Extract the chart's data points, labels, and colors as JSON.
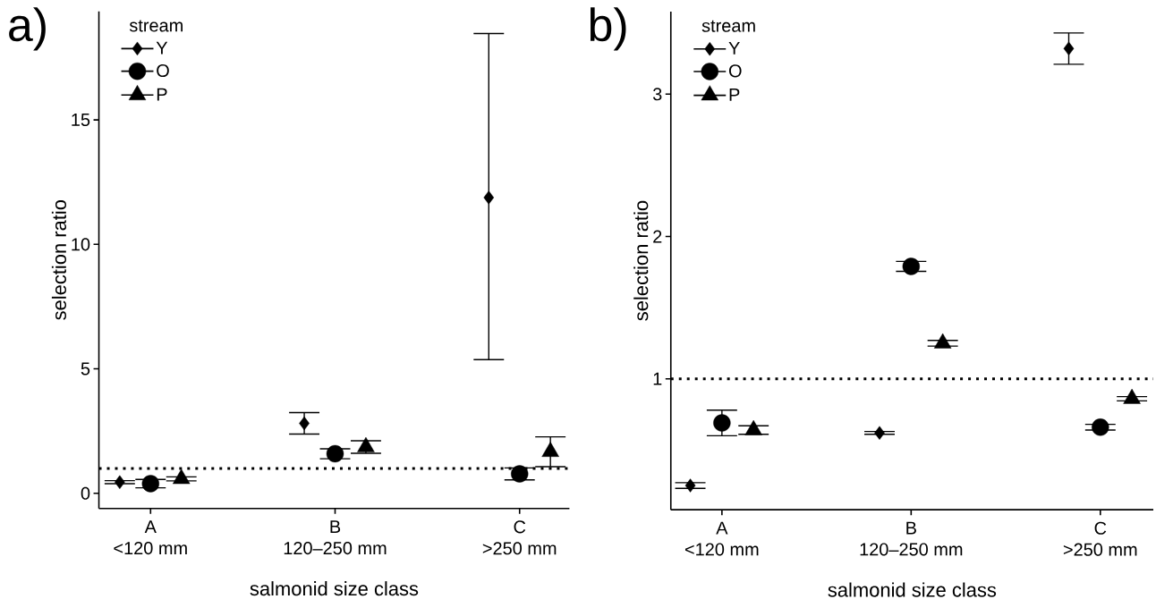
{
  "chart_data": [
    {
      "type": "scatter",
      "title": "a)",
      "xlabel": "salmonid size class",
      "ylabel": "selection ratio",
      "legend_title": "stream",
      "legend": "top left",
      "categories": [
        "A\n<120 mm",
        "B\n120–250 mm",
        "C\n>250 mm"
      ],
      "ylim": [
        -0.61,
        19.36
      ],
      "yticks": [
        0,
        5,
        10,
        15
      ],
      "ref_lines": [
        {
          "axis": "y",
          "value": 1,
          "line_style": "dotted",
          "color": "#000000"
        }
      ],
      "series": [
        {
          "name": "Y",
          "color": "#000000",
          "marker": "diamond",
          "values": [
            0.45,
            2.81,
            11.88
          ],
          "errors": [
            0.06,
            0.43,
            [
              5.37,
              18.47
            ]
          ]
        },
        {
          "name": "O",
          "color": "#000000",
          "marker": "circle",
          "values": [
            0.39,
            1.59,
            0.78
          ],
          "errors": [
            0.17,
            0.2,
            0.24
          ]
        },
        {
          "name": "P",
          "color": "#000000",
          "marker": "triangle",
          "values": [
            0.58,
            1.86,
            1.67
          ],
          "errors": [
            0.08,
            0.25,
            0.6
          ]
        }
      ]
    },
    {
      "type": "scatter",
      "title": "b)",
      "xlabel": "salmonid size class",
      "ylabel": "selection ratio",
      "legend_title": "stream",
      "legend": "top left",
      "categories": [
        "A\n<120 mm",
        "B\n120–250 mm",
        "C\n>250 mm"
      ],
      "ylim": [
        0.08,
        3.58
      ],
      "yticks": [
        1,
        2,
        3
      ],
      "ref_lines": [
        {
          "axis": "y",
          "value": 1,
          "line_style": "dotted",
          "color": "#000000"
        }
      ],
      "series": [
        {
          "name": "Y",
          "color": "#000000",
          "marker": "diamond",
          "values": [
            0.25,
            0.62,
            3.32
          ],
          "errors": [
            0.02,
            0.01,
            0.11
          ]
        },
        {
          "name": "O",
          "color": "#000000",
          "marker": "circle",
          "values": [
            0.69,
            1.79,
            0.66
          ],
          "errors": [
            0.09,
            0.035,
            0.02
          ]
        },
        {
          "name": "P",
          "color": "#000000",
          "marker": "triangle",
          "values": [
            0.64,
            1.25,
            0.86
          ],
          "errors": [
            0.03,
            0.02,
            0.015
          ]
        }
      ]
    }
  ]
}
